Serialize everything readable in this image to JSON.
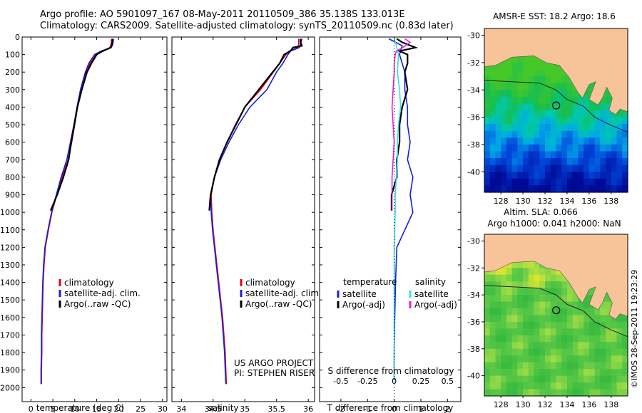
{
  "header": {
    "line1": "Argo profile: AO 5901097_167 08-May-2011 20110509_386 35.138S 133.013E",
    "line2": "Climatology: CARS2009. Satellite-adjusted climatology: synTS_20110509.nc (0.83d later)"
  },
  "colors": {
    "climatology": "#e8000b",
    "satellite": "#1020e0",
    "argo": "#000000",
    "sal_satellite": "#33e0e8",
    "sal_argo": "#e81ed2",
    "land": "#f7c49a",
    "circle": "#000000"
  },
  "chart_data": [
    {
      "type": "line",
      "xlabel": "temperature (deg C)",
      "xlim": [
        -2,
        31
      ],
      "xticks": [
        0,
        5,
        10,
        15,
        20,
        25,
        30
      ],
      "ylim": [
        2080,
        0
      ],
      "yticks": [
        0,
        100,
        200,
        300,
        400,
        500,
        600,
        700,
        800,
        900,
        1000,
        1100,
        1200,
        1300,
        1400,
        1500,
        1600,
        1700,
        1800,
        1900,
        2000
      ],
      "legend": [
        "climatology",
        "satellite-adj. clim.",
        "Argo(..raw -QC)"
      ],
      "series": [
        {
          "name": "climatology",
          "color": "#e8000b",
          "depth": [
            10,
            40,
            60,
            80,
            100,
            150,
            200,
            300,
            400,
            500,
            600,
            700,
            800,
            900,
            1000,
            1100,
            1200,
            1300,
            1400,
            1500,
            1600,
            1700,
            1800,
            1900,
            1980
          ],
          "values": [
            18.4,
            18.3,
            18.0,
            16.2,
            14.8,
            13.5,
            12.6,
            11.5,
            10.6,
            10.0,
            9.3,
            8.5,
            7.1,
            5.9,
            4.8,
            4.0,
            3.3,
            3.0,
            2.8,
            2.7,
            2.6,
            2.5,
            2.5,
            2.4,
            2.4
          ]
        },
        {
          "name": "satellite-adj. clim.",
          "color": "#1020e0",
          "depth": [
            10,
            40,
            60,
            80,
            100,
            150,
            200,
            300,
            400,
            500,
            600,
            700,
            800,
            900,
            1000,
            1100,
            1200,
            1300,
            1400,
            1500,
            1600,
            1700,
            1800,
            1900,
            1980
          ],
          "values": [
            18.8,
            18.7,
            18.3,
            16.0,
            14.5,
            13.2,
            12.4,
            11.3,
            10.5,
            9.8,
            9.0,
            8.2,
            6.9,
            5.8,
            4.7,
            3.9,
            3.2,
            2.9,
            2.7,
            2.6,
            2.5,
            2.4,
            2.4,
            2.3,
            2.3
          ]
        },
        {
          "name": "Argo(..raw -QC)",
          "color": "#000000",
          "depth": [
            10,
            40,
            60,
            80,
            100,
            150,
            200,
            300,
            400,
            500,
            600,
            700,
            800,
            900,
            990
          ],
          "values": [
            18.6,
            18.5,
            18.2,
            16.4,
            15.0,
            13.8,
            12.8,
            11.6,
            10.6,
            9.9,
            9.2,
            8.6,
            7.4,
            6.0,
            4.5
          ]
        }
      ]
    },
    {
      "type": "line",
      "xlabel": "salinity",
      "xlim": [
        33.85,
        36.1
      ],
      "xticks": [
        34,
        34.5,
        35,
        35.5,
        36
      ],
      "ylim": [
        2080,
        0
      ],
      "legend": [
        "climatology",
        "satellite-adj. clim.",
        "Argo(..raw -QC)"
      ],
      "annotation": [
        "US ARGO PROJECT",
        "PI: STEPHEN RISER"
      ],
      "series": [
        {
          "name": "climatology",
          "color": "#e8000b",
          "depth": [
            10,
            40,
            60,
            80,
            100,
            150,
            200,
            300,
            400,
            500,
            600,
            700,
            800,
            900,
            1000,
            1100,
            1200,
            1300,
            1400,
            1500,
            1600,
            1700,
            1800,
            1900,
            1980
          ],
          "values": [
            35.85,
            35.85,
            35.84,
            35.7,
            35.65,
            35.55,
            35.45,
            35.25,
            35.0,
            34.85,
            34.72,
            34.6,
            34.52,
            34.47,
            34.48,
            34.5,
            34.53,
            34.56,
            34.59,
            34.62,
            34.65,
            34.67,
            34.69,
            34.7,
            34.71
          ]
        },
        {
          "name": "satellite-adj. clim.",
          "color": "#1020e0",
          "depth": [
            10,
            40,
            60,
            80,
            100,
            150,
            200,
            300,
            400,
            500,
            600,
            700,
            800,
            900,
            1000,
            1100,
            1200,
            1300,
            1400,
            1500,
            1600,
            1700,
            1800,
            1900,
            1980
          ],
          "values": [
            35.9,
            35.88,
            35.86,
            35.72,
            35.68,
            35.6,
            35.5,
            35.35,
            35.08,
            34.9,
            34.75,
            34.62,
            34.52,
            34.46,
            34.47,
            34.49,
            34.52,
            34.55,
            34.58,
            34.61,
            34.64,
            34.66,
            34.68,
            34.69,
            34.7
          ]
        },
        {
          "name": "Argo(..raw -QC)",
          "color": "#000000",
          "depth": [
            10,
            30,
            50,
            60,
            80,
            100,
            150,
            200,
            300,
            400,
            500,
            600,
            700,
            800,
            900,
            990
          ],
          "values": [
            35.88,
            35.88,
            35.9,
            35.76,
            35.72,
            35.62,
            35.55,
            35.44,
            35.22,
            35.0,
            34.86,
            34.72,
            34.6,
            34.52,
            34.46,
            34.44
          ]
        }
      ]
    },
    {
      "type": "line",
      "xlabel": "T difference from climatology",
      "x2label": "S difference from climatology",
      "xlim": [
        -2.8,
        2.5
      ],
      "xticks": [
        -2,
        -1,
        0,
        1,
        2
      ],
      "x2lim": [
        -0.7,
        0.625
      ],
      "x2ticks": [
        -0.5,
        -0.25,
        0,
        0.25,
        0.5
      ],
      "ylim": [
        2080,
        0
      ],
      "legend_temperature": [
        "temperature",
        "satellite",
        "Argo(-adj)"
      ],
      "legend_salinity": [
        "salinity",
        "satellite",
        "Argo(-adj)"
      ],
      "series": [
        {
          "name": "satellite",
          "group": "temperature",
          "color": "#1020e0",
          "depth": [
            10,
            50,
            100,
            200,
            300,
            400,
            500,
            600,
            700,
            800,
            900,
            1000,
            1200,
            1400,
            1600,
            1800,
            1960
          ],
          "values": [
            -0.2,
            0.3,
            0.2,
            0.4,
            0.4,
            0.5,
            0.5,
            0.6,
            0.5,
            0.7,
            0.6,
            0.7,
            0.1,
            0.05,
            0.02,
            0.0,
            0.0
          ]
        },
        {
          "name": "Argo(-adj)",
          "group": "temperature",
          "color": "#000000",
          "depth": [
            10,
            30,
            60,
            80,
            100,
            150,
            200,
            300,
            400,
            500,
            600,
            700,
            800,
            900,
            990
          ],
          "values": [
            0.1,
            0.3,
            0.8,
            0.2,
            0.5,
            0.5,
            0.4,
            0.5,
            0.3,
            0.2,
            0.2,
            0.1,
            0.1,
            -0.1,
            -0.1
          ]
        },
        {
          "name": "satellite",
          "group": "salinity",
          "color": "#33e0e8",
          "depth": [
            10,
            50,
            100,
            200,
            300,
            400,
            500,
            600,
            700,
            800,
            900,
            1000,
            1200,
            1400,
            1600,
            1800,
            1960
          ],
          "values": [
            0.0,
            0.02,
            0.04,
            0.03,
            0.05,
            0.06,
            0.04,
            0.03,
            0.03,
            0.02,
            0.01,
            0.01,
            0.0,
            0.0,
            0.0,
            0.0,
            0.0
          ]
        },
        {
          "name": "Argo(-adj)",
          "group": "salinity",
          "color": "#e81ed2",
          "depth": [
            10,
            30,
            60,
            80,
            100,
            150,
            200,
            300,
            400,
            500,
            600,
            700,
            800,
            900,
            990
          ],
          "values": [
            0.1,
            0.15,
            0.08,
            0.02,
            0.01,
            0.0,
            0.0,
            -0.01,
            -0.02,
            -0.01,
            0.0,
            -0.01,
            -0.02,
            -0.02,
            -0.02
          ]
        }
      ]
    },
    {
      "type": "heatmap",
      "title": "AMSR-E SST: 18.2  Argo: 18.6",
      "xticks": [
        128,
        130,
        132,
        134,
        136,
        138
      ],
      "yticks": [
        -30,
        -32,
        -34,
        -36,
        -38,
        -40
      ],
      "xlim": [
        126.5,
        139.5
      ],
      "ylim": [
        -41.5,
        -29.5
      ],
      "argo_position": [
        133.013,
        -35.138
      ]
    },
    {
      "type": "heatmap",
      "title": [
        "Altim. SLA: 0.066",
        "Argo h1000: 0.041 h2000: NaN"
      ],
      "xticks": [
        128,
        130,
        132,
        134,
        136,
        138
      ],
      "yticks": [
        -30,
        -32,
        -34,
        -36,
        -38,
        -40
      ],
      "xlim": [
        126.5,
        139.5
      ],
      "ylim": [
        -41.5,
        -29.5
      ],
      "argo_position": [
        133.013,
        -35.138
      ],
      "side_label": "©IMOS 28-Sep-2011 19:23:29"
    }
  ]
}
